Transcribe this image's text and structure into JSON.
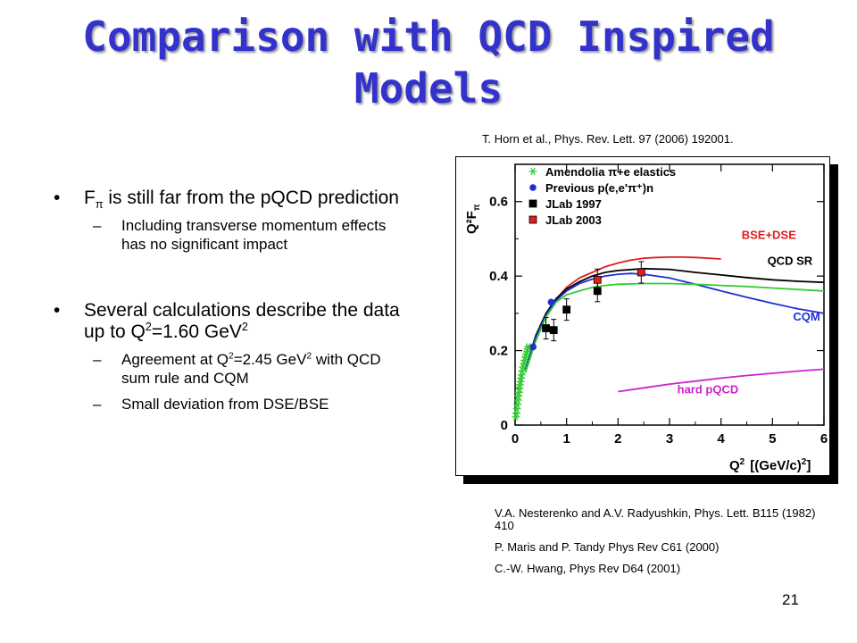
{
  "slide": {
    "title": "Comparison with QCD Inspired Models",
    "ref_top": "T. Horn et al.,   Phys. Rev. Lett. 97 (2006) 192001.",
    "bullets": [
      {
        "pre": "F",
        "sub": "π",
        "post": " is still far from the pQCD prediction",
        "subs": [
          {
            "text": "Including transverse momentum effects has no significant impact"
          }
        ]
      },
      {
        "pre": "Several calculations describe the data up to Q",
        "sup": "2",
        "post": "=1.60 GeV",
        "sup2": "2",
        "subs": [
          {
            "pre": "Agreement at Q",
            "sup": "2",
            "mid": "=2.45 GeV",
            "sup2": "2",
            "post": " with QCD sum rule and CQM"
          },
          {
            "text": "Small deviation from DSE/BSE"
          }
        ]
      }
    ],
    "refs_bottom": [
      "V.A. Nesterenko and A.V. Radyushkin, Phys. Lett. B115 (1982) 410",
      "P. Maris and P. Tandy Phys Rev C61 (2000)",
      "C.-W. Hwang,  Phys Rev D64 (2001)"
    ],
    "page_number": "21"
  },
  "chart_data": {
    "type": "scatter",
    "ylabel": "Q²F",
    "ylabel_sub": "π",
    "xlabel": "Q",
    "xlabel_sup": "2",
    "xlabel_unit": "[(GeV/c)",
    "xlabel_unit_sup": "2",
    "xlabel_unit_close": "]",
    "xlim": [
      0,
      6
    ],
    "ylim": [
      0,
      0.7
    ],
    "x_ticks": [
      "0",
      "1",
      "2",
      "3",
      "4",
      "5",
      "6"
    ],
    "y_ticks": [
      "0",
      "0.2",
      "0.4",
      "0.6"
    ],
    "legend_position": "top-left",
    "legend": [
      {
        "text": "Amendolia π+e elastics",
        "marker": "asterisk",
        "color": "#33cc33"
      },
      {
        "text": "Previous p(e,e'π⁺)n",
        "marker": "circle",
        "color": "#1f2fd6"
      },
      {
        "text": "JLab 1997",
        "marker": "square",
        "color": "#000000"
      },
      {
        "text": "JLab 2003",
        "marker": "square",
        "color": "#dd1f1f"
      }
    ],
    "series": [
      {
        "name": "Amendolia π+e elastics",
        "marker": "asterisk",
        "color": "#33cc33",
        "points": [
          [
            0.015,
            0.022
          ],
          [
            0.025,
            0.032
          ],
          [
            0.035,
            0.044
          ],
          [
            0.045,
            0.055
          ],
          [
            0.055,
            0.067
          ],
          [
            0.065,
            0.078
          ],
          [
            0.075,
            0.088
          ],
          [
            0.085,
            0.098
          ],
          [
            0.095,
            0.108
          ],
          [
            0.105,
            0.117
          ],
          [
            0.115,
            0.126
          ],
          [
            0.125,
            0.135
          ],
          [
            0.14,
            0.146
          ],
          [
            0.155,
            0.156
          ],
          [
            0.17,
            0.165
          ],
          [
            0.185,
            0.174
          ],
          [
            0.2,
            0.183
          ],
          [
            0.215,
            0.19
          ],
          [
            0.23,
            0.197
          ],
          [
            0.245,
            0.204
          ],
          [
            0.255,
            0.21
          ]
        ]
      },
      {
        "name": "Previous p(e,e'π⁺)n",
        "marker": "circle",
        "color": "#1f2fd6",
        "points": [
          [
            0.35,
            0.21
          ],
          [
            0.7,
            0.33
          ]
        ]
      },
      {
        "name": "JLab 1997",
        "marker": "square",
        "color": "#000000",
        "points": [
          [
            0.6,
            0.26
          ],
          [
            0.75,
            0.255
          ],
          [
            1.0,
            0.31
          ],
          [
            1.6,
            0.36
          ]
        ]
      },
      {
        "name": "JLab 2003",
        "marker": "square",
        "color": "#dd1f1f",
        "points": [
          [
            1.6,
            0.39
          ],
          [
            2.45,
            0.41
          ]
        ]
      }
    ],
    "curves": [
      {
        "name": "BSE+DSE",
        "color": "#dd1f1f",
        "points": [
          [
            0.25,
            0.17
          ],
          [
            0.5,
            0.27
          ],
          [
            0.75,
            0.33
          ],
          [
            1.0,
            0.37
          ],
          [
            1.25,
            0.395
          ],
          [
            1.5,
            0.41
          ],
          [
            1.75,
            0.425
          ],
          [
            2.0,
            0.435
          ],
          [
            2.25,
            0.443
          ],
          [
            2.5,
            0.448
          ],
          [
            2.75,
            0.45
          ],
          [
            3.0,
            0.451
          ],
          [
            3.25,
            0.451
          ],
          [
            3.5,
            0.45
          ],
          [
            3.75,
            0.448
          ],
          [
            4.0,
            0.446
          ]
        ]
      },
      {
        "name": "QCD SR",
        "color": "#000000",
        "points": [
          [
            0.2,
            0.15
          ],
          [
            0.4,
            0.24
          ],
          [
            0.6,
            0.3
          ],
          [
            0.8,
            0.34
          ],
          [
            1.0,
            0.365
          ],
          [
            1.25,
            0.385
          ],
          [
            1.5,
            0.4
          ],
          [
            1.75,
            0.41
          ],
          [
            2.0,
            0.415
          ],
          [
            2.5,
            0.42
          ],
          [
            3.0,
            0.418
          ],
          [
            3.5,
            0.41
          ],
          [
            4.0,
            0.403
          ],
          [
            4.5,
            0.396
          ],
          [
            5.0,
            0.39
          ],
          [
            5.5,
            0.386
          ],
          [
            6.0,
            0.383
          ]
        ]
      },
      {
        "name": "CQM",
        "color": "#1f2fd6",
        "points": [
          [
            0.2,
            0.15
          ],
          [
            0.4,
            0.235
          ],
          [
            0.6,
            0.295
          ],
          [
            0.8,
            0.335
          ],
          [
            1.0,
            0.36
          ],
          [
            1.25,
            0.38
          ],
          [
            1.5,
            0.392
          ],
          [
            1.75,
            0.4
          ],
          [
            2.0,
            0.405
          ],
          [
            2.25,
            0.407
          ],
          [
            2.5,
            0.405
          ],
          [
            3.0,
            0.395
          ],
          [
            3.5,
            0.378
          ],
          [
            4.0,
            0.36
          ],
          [
            4.5,
            0.343
          ],
          [
            5.0,
            0.327
          ],
          [
            5.5,
            0.312
          ],
          [
            6.0,
            0.3
          ]
        ]
      },
      {
        "name": "",
        "color": "#33cc33",
        "points": [
          [
            0.2,
            0.14
          ],
          [
            0.4,
            0.225
          ],
          [
            0.6,
            0.29
          ],
          [
            0.8,
            0.33
          ],
          [
            1.0,
            0.35
          ],
          [
            1.25,
            0.36
          ],
          [
            1.5,
            0.37
          ],
          [
            1.75,
            0.375
          ],
          [
            2.0,
            0.378
          ],
          [
            2.5,
            0.38
          ],
          [
            3.0,
            0.38
          ],
          [
            3.5,
            0.378
          ],
          [
            4.0,
            0.375
          ],
          [
            4.5,
            0.372
          ],
          [
            5.0,
            0.368
          ],
          [
            5.5,
            0.364
          ],
          [
            6.0,
            0.36
          ]
        ]
      },
      {
        "name": "hard pQCD",
        "color": "#cc22cc",
        "points": [
          [
            2.0,
            0.09
          ],
          [
            2.5,
            0.1
          ],
          [
            3.0,
            0.11
          ],
          [
            3.5,
            0.118
          ],
          [
            4.0,
            0.126
          ],
          [
            4.5,
            0.133
          ],
          [
            5.0,
            0.139
          ],
          [
            5.5,
            0.145
          ],
          [
            6.0,
            0.15
          ]
        ]
      }
    ],
    "annotations": [
      {
        "text": "BSE+DSE",
        "color": "#dd1f1f",
        "x": 4.4,
        "y": 0.5
      },
      {
        "text": "QCD SR",
        "color": "#000000",
        "x": 4.9,
        "y": 0.43
      },
      {
        "text": "CQM",
        "color": "#1f2fd6",
        "x": 5.4,
        "y": 0.28
      },
      {
        "text": "hard pQCD",
        "color": "#cc22cc",
        "x": 3.15,
        "y": 0.085
      }
    ]
  }
}
